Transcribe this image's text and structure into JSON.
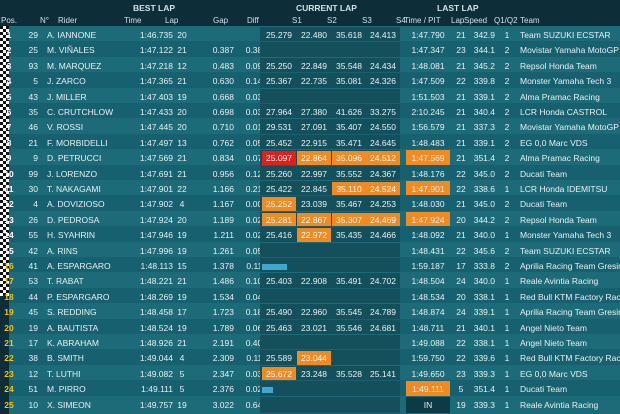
{
  "header": {
    "best_lap": "BEST LAP",
    "current_lap": "CURRENT LAP",
    "last_lap": "LAST LAP",
    "pos": "Pos.",
    "num": "N°",
    "rider": "Rider",
    "time": "Time",
    "lap": "Lap",
    "gap": "Gap",
    "diff": "Diff",
    "s1": "S1",
    "s2": "S2",
    "s3": "S3",
    "s4": "S4",
    "time_pit": "Time / PIT",
    "last_lap_col": "Lap",
    "speed": "Speed",
    "q": "Q1/Q2",
    "team": "Team"
  },
  "colors": {
    "row_odd": "#1d6b78",
    "row_even": "#176070",
    "sector_orange": "#f08a23",
    "sector_red": "#e0201c",
    "progress_blue": "#3fa8d0"
  },
  "rows": [
    {
      "pos": "1",
      "num": "29",
      "rider": "A. IANNONE",
      "best": "1:46.735",
      "blap": "20",
      "gap": "",
      "diff": "",
      "s": [
        "25.279",
        "22.480",
        "35.618",
        "24.413"
      ],
      "sc": [
        "",
        "",
        "",
        ""
      ],
      "last": "1:47.790",
      "llap": "21",
      "speed": "342.9",
      "q": "1",
      "team": "Team SUZUKI ECSTAR"
    },
    {
      "pos": "2",
      "num": "25",
      "rider": "M. VIÑALES",
      "best": "1:47.122",
      "blap": "21",
      "gap": "0.387",
      "diff": "0.387",
      "s": [
        "",
        "",
        "",
        ""
      ],
      "sc": [
        "",
        "",
        "",
        ""
      ],
      "last": "1:47.347",
      "llap": "23",
      "speed": "344.1",
      "q": "2",
      "team": "Movistar Yamaha MotoGP"
    },
    {
      "pos": "3",
      "num": "93",
      "rider": "M. MARQUEZ",
      "best": "1:47.218",
      "blap": "12",
      "gap": "0.483",
      "diff": "0.096",
      "s": [
        "25.250",
        "22.849",
        "35.548",
        "24.434"
      ],
      "sc": [
        "",
        "",
        "",
        ""
      ],
      "last": "1:48.081",
      "llap": "21",
      "speed": "345.2",
      "q": "2",
      "team": "Repsol Honda Team"
    },
    {
      "pos": "4",
      "num": "5",
      "rider": "J. ZARCO",
      "best": "1:47.365",
      "blap": "21",
      "gap": "0.630",
      "diff": "0.147",
      "s": [
        "25.367",
        "22.735",
        "35.081",
        "24.326"
      ],
      "sc": [
        "",
        "",
        "",
        ""
      ],
      "last": "1:47.509",
      "llap": "22",
      "speed": "339.8",
      "q": "2",
      "team": "Monster Yamaha Tech 3"
    },
    {
      "pos": "5",
      "num": "43",
      "rider": "J. MILLER",
      "best": "1:47.403",
      "blap": "19",
      "gap": "0.668",
      "diff": "0.038",
      "s": [
        "",
        "",
        "",
        ""
      ],
      "sc": [
        "",
        "",
        "",
        ""
      ],
      "last": "1:51.503",
      "llap": "21",
      "speed": "339.1",
      "q": "2",
      "team": "Alma Pramac Racing"
    },
    {
      "pos": "6",
      "num": "35",
      "rider": "C. CRUTCHLOW",
      "best": "1:47.433",
      "blap": "20",
      "gap": "0.698",
      "diff": "0.030",
      "s": [
        "27.964",
        "27.380",
        "41.626",
        "33.275"
      ],
      "sc": [
        "",
        "",
        "",
        ""
      ],
      "last": "2:10.245",
      "llap": "21",
      "speed": "340.4",
      "q": "2",
      "team": "LCR Honda CASTROL"
    },
    {
      "pos": "7",
      "num": "46",
      "rider": "V. ROSSI",
      "best": "1:47.445",
      "blap": "20",
      "gap": "0.710",
      "diff": "0.012",
      "s": [
        "29.531",
        "27.091",
        "35.407",
        "24.550"
      ],
      "sc": [
        "",
        "",
        "",
        ""
      ],
      "last": "1:56.579",
      "llap": "21",
      "speed": "337.3",
      "q": "2",
      "team": "Movistar Yamaha MotoGP"
    },
    {
      "pos": "8",
      "num": "21",
      "rider": "F. MORBIDELLI",
      "best": "1:47.497",
      "blap": "13",
      "gap": "0.762",
      "diff": "0.052",
      "s": [
        "25.452",
        "22.915",
        "35.471",
        "24.645"
      ],
      "sc": [
        "",
        "",
        "",
        ""
      ],
      "last": "1:48.483",
      "llap": "21",
      "speed": "339.1",
      "q": "2",
      "team": "EG 0,0 Marc VDS"
    },
    {
      "pos": "9",
      "num": "9",
      "rider": "D. PETRUCCI",
      "best": "1:47.569",
      "blap": "21",
      "gap": "0.834",
      "diff": "0.072",
      "s": [
        "25.097",
        "22.864",
        "35.096",
        "24.512"
      ],
      "sc": [
        "r",
        "o",
        "o",
        "o"
      ],
      "last": "1:47.569",
      "llap": "21",
      "speed": "351.4",
      "q": "2",
      "team": "Alma Pramac Racing",
      "lastc": "o"
    },
    {
      "pos": "10",
      "num": "99",
      "rider": "J. LORENZO",
      "best": "1:47.691",
      "blap": "21",
      "gap": "0.956",
      "diff": "0.122",
      "s": [
        "25.260",
        "22.997",
        "35.552",
        "24.367"
      ],
      "sc": [
        "",
        "",
        "",
        ""
      ],
      "last": "1:48.176",
      "llap": "22",
      "speed": "345.0",
      "q": "2",
      "team": "Ducati Team"
    },
    {
      "pos": "11",
      "num": "30",
      "rider": "T. NAKAGAMI",
      "best": "1:47.901",
      "blap": "22",
      "gap": "1.166",
      "diff": "0.210",
      "s": [
        "25.422",
        "22.845",
        "35.110",
        "24.524"
      ],
      "sc": [
        "",
        "",
        "o",
        "o"
      ],
      "last": "1:47.901",
      "llap": "22",
      "speed": "338.6",
      "q": "1",
      "team": "LCR Honda IDEMITSU",
      "lastc": "o"
    },
    {
      "pos": "12",
      "num": "4",
      "rider": "A. DOVIZIOSO",
      "best": "1:47.902",
      "blap": "4",
      "gap": "1.167",
      "diff": "0.001",
      "s": [
        "25.252",
        "23.039",
        "35.467",
        "24.253"
      ],
      "sc": [
        "o",
        "",
        "",
        ""
      ],
      "last": "1:48.030",
      "llap": "21",
      "speed": "345.0",
      "q": "2",
      "team": "Ducati Team"
    },
    {
      "pos": "13",
      "num": "26",
      "rider": "D. PEDROSA",
      "best": "1:47.924",
      "blap": "20",
      "gap": "1.189",
      "diff": "0.022",
      "s": [
        "25.281",
        "22.867",
        "35.307",
        "24.469"
      ],
      "sc": [
        "o",
        "o",
        "o",
        "o"
      ],
      "last": "1:47.924",
      "llap": "20",
      "speed": "344.2",
      "q": "2",
      "team": "Repsol Honda Team",
      "lastc": "o"
    },
    {
      "pos": "14",
      "num": "55",
      "rider": "H. SYAHRIN",
      "best": "1:47.946",
      "blap": "19",
      "gap": "1.211",
      "diff": "0.022",
      "s": [
        "25.416",
        "22.972",
        "35.435",
        "24.466"
      ],
      "sc": [
        "",
        "o",
        "",
        ""
      ],
      "last": "1:48.092",
      "llap": "21",
      "speed": "340.0",
      "q": "1",
      "team": "Monster Yamaha Tech 3"
    },
    {
      "pos": "15",
      "num": "42",
      "rider": "A. RINS",
      "best": "1:47.996",
      "blap": "19",
      "gap": "1.261",
      "diff": "0.050",
      "s": [
        "",
        "",
        "",
        ""
      ],
      "sc": [
        "",
        "",
        "",
        ""
      ],
      "last": "1:48.431",
      "llap": "22",
      "speed": "345.6",
      "q": "2",
      "team": "Team SUZUKI ECSTAR"
    },
    {
      "pos": "16",
      "num": "41",
      "rider": "A. ESPARGARO",
      "best": "1:48.113",
      "blap": "15",
      "gap": "1.378",
      "diff": "0.117",
      "s": [
        "",
        "",
        "",
        ""
      ],
      "sc": [
        "",
        "",
        "",
        ""
      ],
      "prog": 18,
      "last": "1:59.187",
      "llap": "17",
      "speed": "333.8",
      "q": "2",
      "team": "Aprilia Racing Team Gresini"
    },
    {
      "pos": "17",
      "num": "53",
      "rider": "T. RABAT",
      "best": "1:48.221",
      "blap": "21",
      "gap": "1.486",
      "diff": "0.108",
      "s": [
        "25.403",
        "22.908",
        "35.491",
        "24.702"
      ],
      "sc": [
        "",
        "",
        "",
        ""
      ],
      "last": "1:48.504",
      "llap": "24",
      "speed": "340.0",
      "q": "1",
      "team": "Reale Avintia Racing"
    },
    {
      "pos": "18",
      "num": "44",
      "rider": "P. ESPARGARO",
      "best": "1:48.269",
      "blap": "19",
      "gap": "1.534",
      "diff": "0.048",
      "s": [
        "",
        "",
        "",
        ""
      ],
      "sc": [
        "",
        "",
        "",
        ""
      ],
      "last": "1:48.534",
      "llap": "20",
      "speed": "338.1",
      "q": "1",
      "team": "Red Bull KTM Factory Racing"
    },
    {
      "pos": "19",
      "num": "45",
      "rider": "S. REDDING",
      "best": "1:48.458",
      "blap": "17",
      "gap": "1.723",
      "diff": "0.189",
      "s": [
        "25.490",
        "22.960",
        "35.545",
        "24.789"
      ],
      "sc": [
        "",
        "",
        "",
        ""
      ],
      "last": "1:48.874",
      "llap": "24",
      "speed": "339.1",
      "q": "1",
      "team": "Aprilia Racing Team Gresini"
    },
    {
      "pos": "20",
      "num": "19",
      "rider": "A. BAUTISTA",
      "best": "1:48.524",
      "blap": "19",
      "gap": "1.789",
      "diff": "0.066",
      "s": [
        "25.463",
        "23.021",
        "35.546",
        "24.681"
      ],
      "sc": [
        "",
        "",
        "",
        ""
      ],
      "last": "1:48.711",
      "llap": "21",
      "speed": "340.1",
      "q": "1",
      "team": "Angel Nieto Team"
    },
    {
      "pos": "21",
      "num": "17",
      "rider": "K. ABRAHAM",
      "best": "1:48.926",
      "blap": "21",
      "gap": "2.191",
      "diff": "0.402",
      "s": [
        "",
        "",
        "",
        ""
      ],
      "sc": [
        "",
        "",
        "",
        ""
      ],
      "last": "1:49.088",
      "llap": "22",
      "speed": "338.1",
      "q": "1",
      "team": "Angel Nieto Team"
    },
    {
      "pos": "22",
      "num": "38",
      "rider": "B. SMITH",
      "best": "1:49.044",
      "blap": "4",
      "gap": "2.309",
      "diff": "0.118",
      "s": [
        "25.589",
        "23.044",
        "",
        ""
      ],
      "sc": [
        "",
        "o",
        "",
        ""
      ],
      "last": "1:59.750",
      "llap": "22",
      "speed": "339.6",
      "q": "1",
      "team": "Red Bull KTM Factory Racing"
    },
    {
      "pos": "23",
      "num": "12",
      "rider": "T. LUTHI",
      "best": "1:49.082",
      "blap": "5",
      "gap": "2.347",
      "diff": "0.038",
      "s": [
        "25.672",
        "23.248",
        "35.528",
        "25.141"
      ],
      "sc": [
        "o",
        "",
        "",
        ""
      ],
      "last": "1:49.650",
      "llap": "23",
      "speed": "339.3",
      "q": "1",
      "team": "EG 0,0 Marc VDS"
    },
    {
      "pos": "24",
      "num": "51",
      "rider": "M. PIRRO",
      "best": "1:49.111",
      "blap": "5",
      "gap": "2.376",
      "diff": "0.029",
      "s": [
        "",
        "",
        "",
        ""
      ],
      "sc": [
        "",
        "",
        "",
        ""
      ],
      "prog": 8,
      "last": "1:49.111",
      "llap": "5",
      "speed": "351.4",
      "q": "1",
      "team": "Ducati Team",
      "lastc": "o"
    },
    {
      "pos": "25",
      "num": "10",
      "rider": "X. SIMEON",
      "best": "1:49.757",
      "blap": "19",
      "gap": "3.022",
      "diff": "0.646",
      "s": [
        "",
        "",
        "",
        ""
      ],
      "sc": [
        "",
        "",
        "",
        ""
      ],
      "last": "IN",
      "llap": "19",
      "speed": "339.3",
      "q": "1",
      "team": "Reale Avintia Racing",
      "lastc": "w"
    }
  ]
}
